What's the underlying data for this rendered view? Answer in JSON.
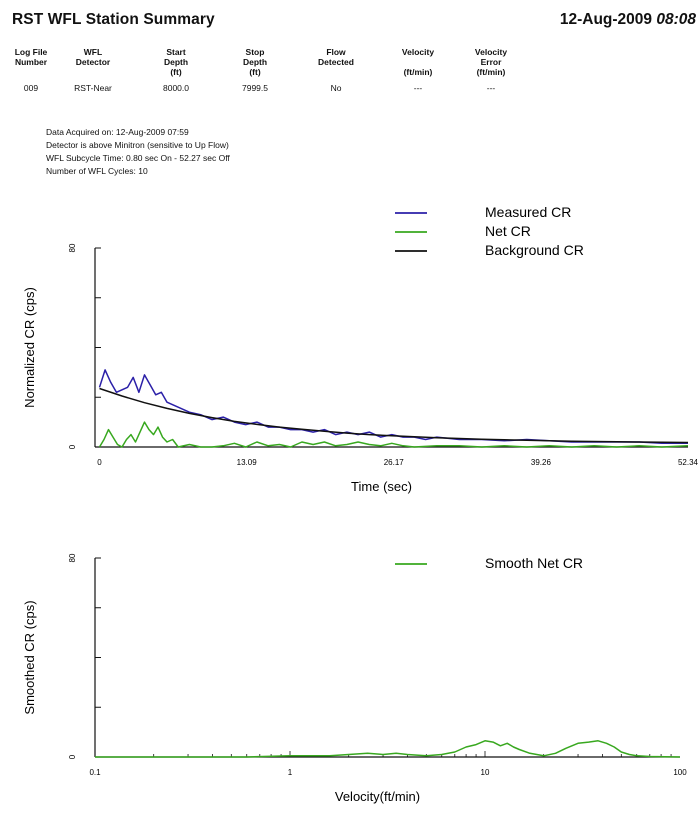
{
  "header": {
    "title": "RST WFL Station Summary",
    "date": "12-Aug-2009",
    "time": "08:08"
  },
  "summary_table": {
    "columns": [
      [
        "Log File",
        "Number"
      ],
      [
        "WFL",
        "Detector"
      ],
      [
        "Start",
        "Depth",
        "(ft)"
      ],
      [
        "Stop",
        "Depth",
        "(ft)"
      ],
      [
        "Flow",
        "Detected"
      ],
      [
        "Velocity",
        "",
        "(ft/min)"
      ],
      [
        "Velocity",
        "Error",
        "(ft/min)"
      ]
    ],
    "row": [
      "009",
      "RST-Near",
      "8000.0",
      "7999.5",
      "No",
      "---",
      "---"
    ]
  },
  "acquisition_info": {
    "acquired": "Data Acquired on: 12-Aug-2009 07:59",
    "detector": "Detector is above Minitron (sensitive to Up Flow)",
    "subcycle": "WFL Subcycle Time:  0.80 sec On  -  52.27 sec Off",
    "cycles": "Number of WFL Cycles: 10"
  },
  "chart_data": [
    {
      "type": "line",
      "xlabel": "Time (sec)",
      "ylabel": "Normalized CR (cps)",
      "xlim": [
        -0.4,
        52.34
      ],
      "ylim": [
        0,
        80
      ],
      "x_ticks": [
        "0",
        "13.09",
        "26.17",
        "39.26",
        "52.34"
      ],
      "y_ticks": [
        "0",
        "80"
      ],
      "grid": false,
      "legend_position": "top-right",
      "colors": {
        "Measured CR": "#2b20a8",
        "Net CR": "#38a81f",
        "Background CR": "#111111"
      },
      "series": [
        {
          "name": "Measured CR",
          "x": [
            0,
            0.5,
            1,
            1.5,
            2,
            2.5,
            3,
            3.5,
            4,
            4.5,
            5,
            5.5,
            6,
            6.5,
            7,
            8,
            9,
            10,
            11,
            12,
            13,
            14,
            15,
            16,
            17,
            18,
            19,
            20,
            21,
            22,
            23,
            24,
            25,
            26,
            27,
            28,
            29,
            30,
            32,
            34,
            36,
            38,
            40,
            42,
            44,
            46,
            48,
            50,
            52.34
          ],
          "y": [
            24,
            31,
            26,
            22,
            23,
            24,
            28,
            22,
            29,
            25,
            21,
            22,
            18,
            17,
            16,
            14,
            13,
            11,
            12,
            10,
            9,
            10,
            8,
            8,
            7,
            7,
            6,
            7,
            5,
            6,
            5,
            6,
            4,
            5,
            4,
            4,
            3,
            4,
            3,
            3,
            2.5,
            3,
            2.5,
            2,
            2,
            2,
            2,
            1.5,
            1.5
          ]
        },
        {
          "name": "Net CR",
          "x": [
            0,
            0.4,
            0.8,
            1.2,
            1.6,
            2,
            2.4,
            2.8,
            3.2,
            3.6,
            4,
            4.4,
            4.8,
            5.2,
            5.6,
            6,
            6.5,
            7,
            8,
            9,
            10,
            11,
            12,
            13,
            14,
            15,
            16,
            17,
            18,
            19,
            20,
            21,
            22,
            23,
            24,
            25,
            26,
            27,
            28,
            30,
            32,
            34,
            36,
            38,
            40,
            42,
            44,
            46,
            48,
            50,
            52.34
          ],
          "y": [
            0,
            3,
            7,
            4,
            1,
            0,
            3,
            5,
            2,
            6,
            10,
            7,
            5,
            8,
            4,
            2,
            3,
            0,
            1,
            0,
            0,
            0.5,
            1.5,
            0,
            2,
            0.5,
            1,
            0,
            2,
            1,
            2,
            0.5,
            1,
            2,
            1,
            0.5,
            1.5,
            0.5,
            0,
            0.5,
            0.5,
            0,
            0.5,
            0,
            0.5,
            0,
            0.5,
            0,
            0.5,
            0,
            0.5
          ]
        },
        {
          "name": "Background CR",
          "x": [
            0,
            2,
            4,
            6,
            8,
            10,
            12,
            14,
            16,
            18,
            20,
            22,
            24,
            26,
            28,
            30,
            32,
            34,
            36,
            38,
            40,
            42,
            44,
            46,
            48,
            50,
            52.34
          ],
          "y": [
            23.5,
            20.5,
            17.8,
            15.5,
            13.5,
            11.8,
            10.3,
            9.1,
            8,
            7.1,
            6.3,
            5.6,
            5,
            4.5,
            4.1,
            3.7,
            3.4,
            3.1,
            2.9,
            2.7,
            2.5,
            2.3,
            2.2,
            2.1,
            2,
            1.9,
            1.8
          ]
        }
      ]
    },
    {
      "type": "line",
      "xlabel": "Velocity(ft/min)",
      "ylabel": "Smoothed CR (cps)",
      "x_scale": "log",
      "xlim": [
        0.1,
        100
      ],
      "ylim": [
        0,
        80
      ],
      "x_ticks": [
        "0.1",
        "1",
        "10",
        "100"
      ],
      "y_ticks": [
        "0",
        "80"
      ],
      "grid": false,
      "legend_position": "top-right",
      "colors": {
        "Smooth Net CR": "#38a81f"
      },
      "series": [
        {
          "name": "Smooth Net CR",
          "x": [
            0.1,
            0.6,
            1,
            1.3,
            1.6,
            2,
            2.5,
            3,
            3.5,
            4,
            5,
            6,
            7,
            8,
            9,
            10,
            11,
            12,
            13,
            14,
            15,
            17,
            20,
            23,
            26,
            30,
            34,
            38,
            42,
            46,
            50,
            55,
            60,
            70,
            100
          ],
          "y": [
            0,
            0,
            0.5,
            0.5,
            0.5,
            1,
            1.5,
            1,
            1.5,
            1,
            0.5,
            1,
            2,
            4,
            5,
            6.5,
            6,
            4.5,
            5.5,
            4,
            3,
            1.5,
            0.5,
            1.5,
            3.5,
            5.5,
            6,
            6.5,
            5.5,
            4,
            2,
            1,
            0.5,
            0.2,
            0
          ]
        }
      ]
    }
  ]
}
